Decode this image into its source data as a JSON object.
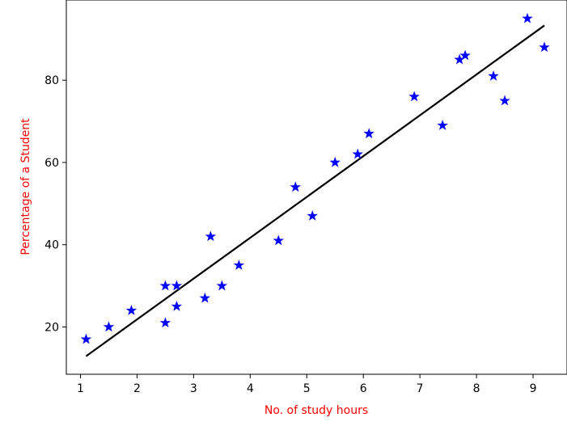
{
  "chart_data": {
    "type": "scatter",
    "title": "",
    "xlabel": "No. of study hours",
    "ylabel": "Percentage of a Student",
    "xlim": [
      0.75,
      9.6
    ],
    "ylim": [
      8.5,
      99.5
    ],
    "xticks": [
      1,
      2,
      3,
      4,
      5,
      6,
      7,
      8,
      9
    ],
    "yticks": [
      20,
      40,
      60,
      80
    ],
    "grid": false,
    "legend": "none",
    "label_color": "#ff0000",
    "series": [
      {
        "kind": "scatter",
        "marker": "star",
        "color": "#0000ff",
        "x": [
          2.5,
          5.1,
          3.2,
          8.5,
          3.5,
          1.5,
          9.2,
          5.5,
          8.3,
          2.7,
          7.7,
          5.9,
          4.5,
          3.3,
          1.1,
          8.9,
          2.5,
          1.9,
          6.1,
          7.4,
          2.7,
          4.8,
          3.8,
          6.9,
          7.8
        ],
        "y": [
          21,
          47,
          27,
          75,
          30,
          20,
          88,
          60,
          81,
          25,
          85,
          62,
          41,
          42,
          17,
          95,
          30,
          24,
          67,
          69,
          30,
          54,
          35,
          76,
          86
        ]
      },
      {
        "kind": "line",
        "color": "#000000",
        "x": [
          1.1,
          9.2
        ],
        "y": [
          12.9,
          93.3
        ]
      }
    ]
  }
}
